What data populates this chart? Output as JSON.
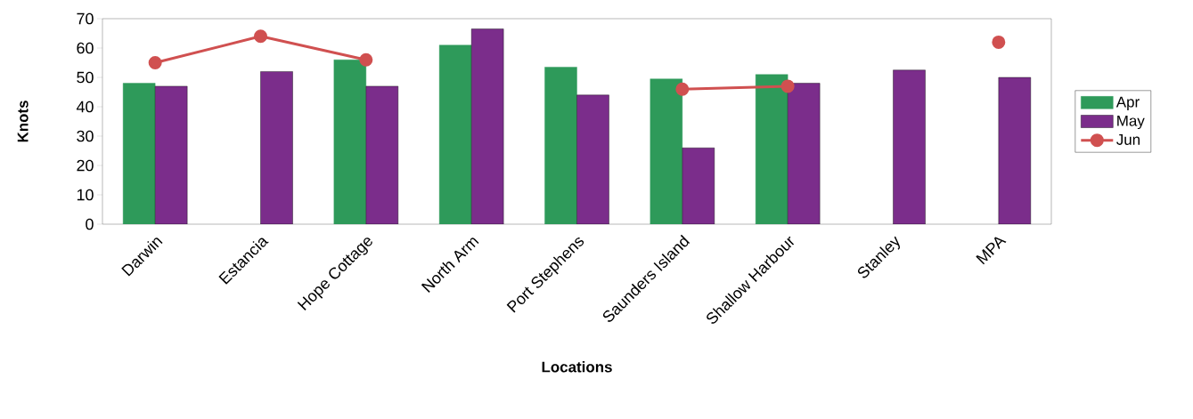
{
  "chart_data": {
    "type": "bar",
    "xlabel": "Locations",
    "ylabel": "Knots",
    "categories": [
      "Darwin",
      "Estancia",
      "Hope Cottage",
      "North Arm",
      "Port Stephens",
      "Saunders Island",
      "Shallow Harbour",
      "Stanley",
      "MPA"
    ],
    "series": [
      {
        "name": "Apr",
        "color": "#2e9a5a",
        "values": [
          48,
          null,
          56,
          61,
          53.5,
          49.5,
          51,
          null,
          null
        ]
      },
      {
        "name": "May",
        "color": "#7b2d8b",
        "values": [
          47,
          52,
          47,
          66.5,
          44,
          26,
          48,
          52.5,
          50
        ]
      },
      {
        "name": "Jun",
        "type": "line",
        "color": "#d05050",
        "marker": "circle",
        "values": [
          55,
          64,
          56,
          null,
          null,
          46,
          47,
          null,
          62
        ]
      }
    ],
    "ylim": [
      0,
      70
    ],
    "yticks": [
      0,
      10,
      20,
      30,
      40,
      50,
      60,
      70
    ],
    "legend": "right",
    "grid": false
  }
}
